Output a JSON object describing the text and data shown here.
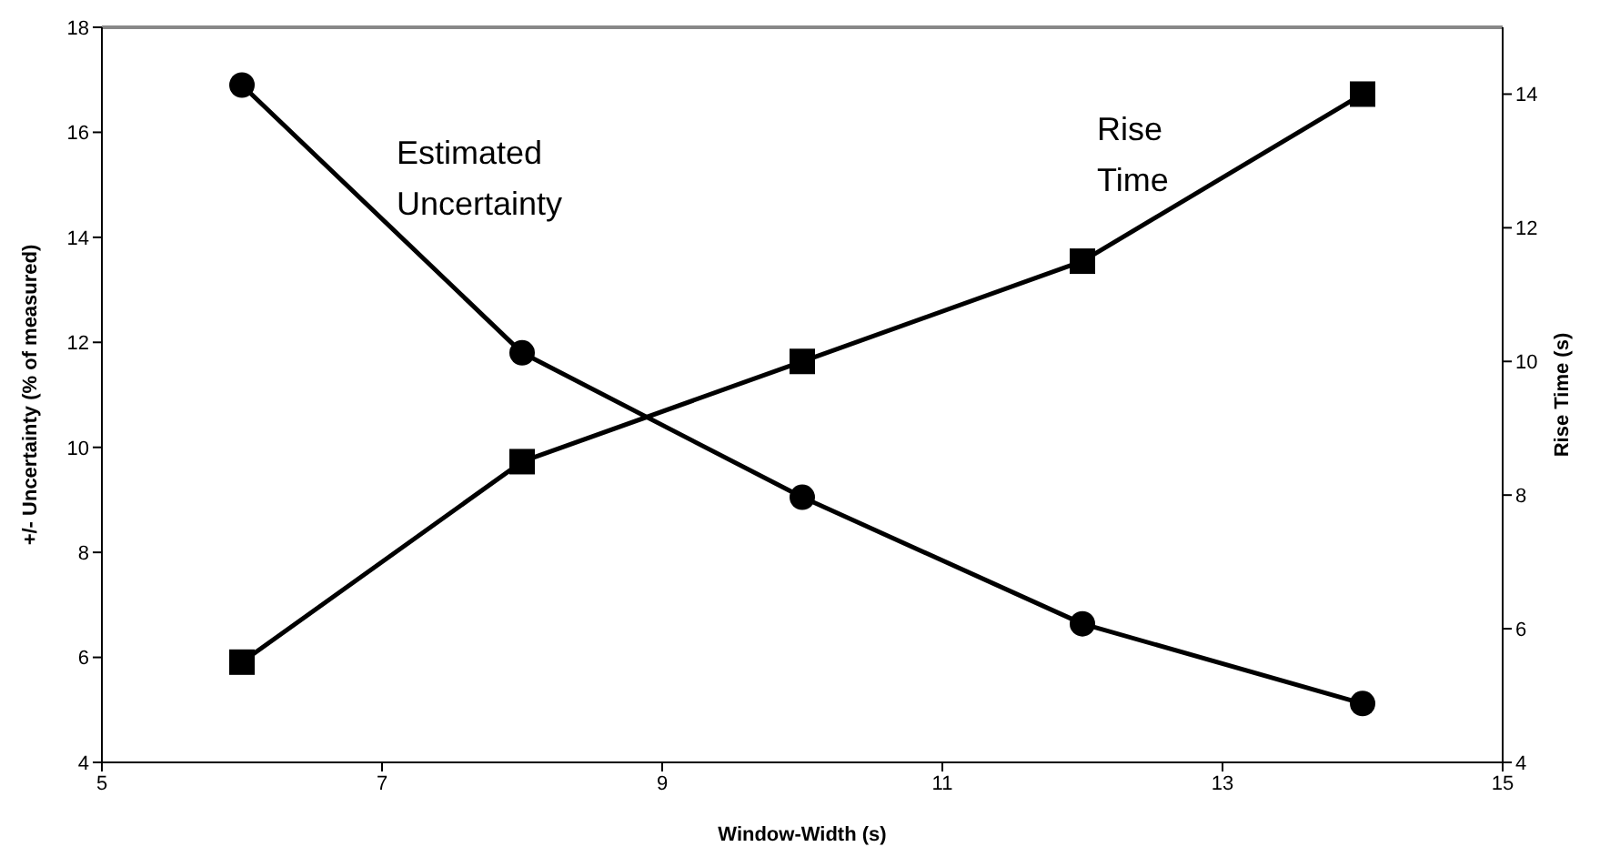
{
  "chart_data": {
    "type": "line",
    "xlabel": "Window-Width (s)",
    "ylabel": "+/- Uncertainty (% of measured)",
    "y2label": "Rise Time (s)",
    "x": [
      6,
      8,
      10,
      12,
      14
    ],
    "series": [
      {
        "name": "Estimated Uncertainty",
        "color": "#000000",
        "marker": "circle",
        "values": [
          16.9,
          11.8,
          9.05,
          6.64,
          5.12
        ]
      },
      {
        "name": "Rise Time",
        "color": "#000000",
        "marker": "square",
        "axis": "y2",
        "values": [
          5.5,
          8.5,
          10.0,
          11.5,
          14.0
        ]
      }
    ],
    "xlim": [
      5,
      15
    ],
    "xticks": [
      5,
      7,
      9,
      11,
      13,
      15
    ],
    "ylim": [
      4,
      18
    ],
    "yticks": [
      4,
      6,
      8,
      10,
      12,
      14,
      16,
      18
    ],
    "y2lim": [
      4,
      15
    ],
    "y2ticks": [
      4,
      6,
      8,
      10,
      12,
      14
    ],
    "line_style": "solid"
  }
}
